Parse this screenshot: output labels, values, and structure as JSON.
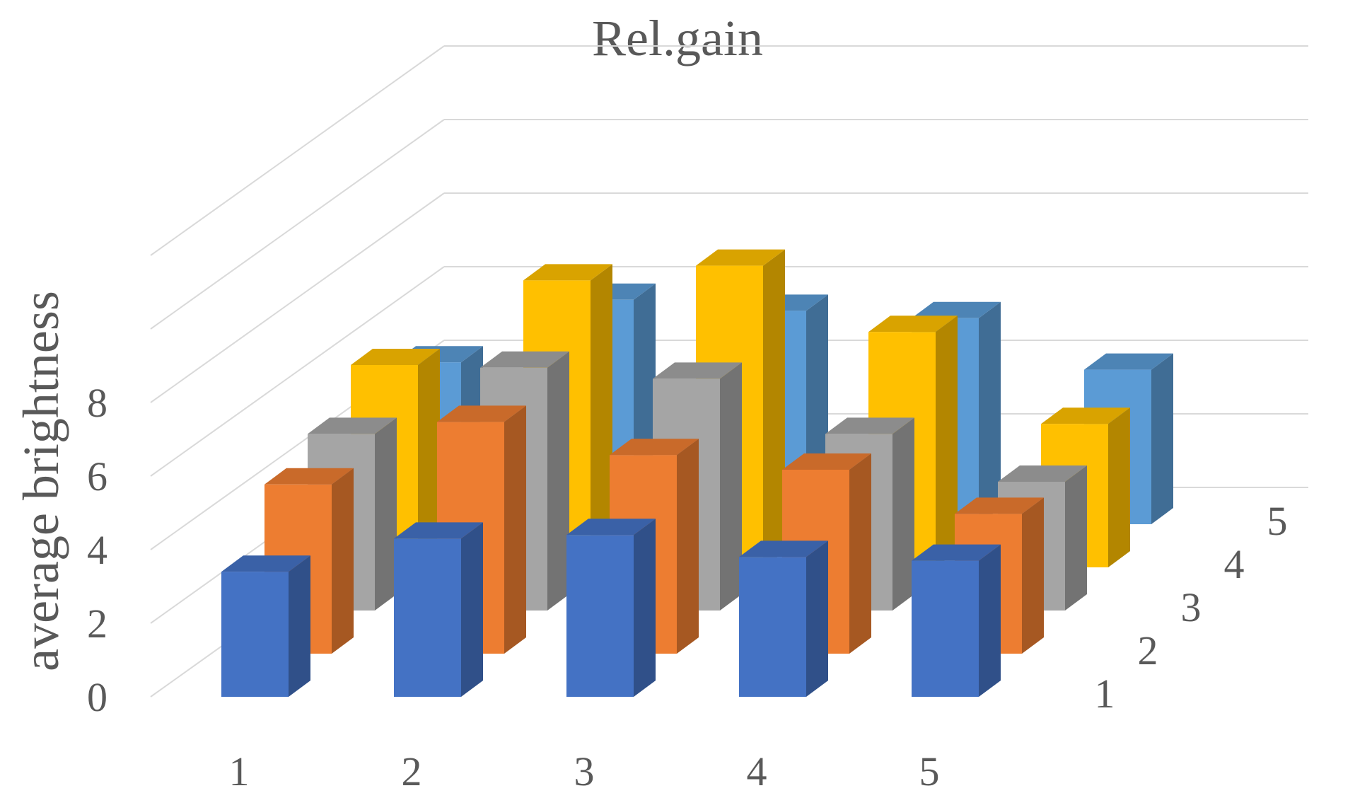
{
  "chart_data": {
    "type": "bar",
    "subtype": "3d-column",
    "title": "Rel.gain",
    "xlabel": "",
    "ylabel": "average brightness",
    "zlabel": "",
    "categories": [
      "1",
      "2",
      "3",
      "4",
      "5"
    ],
    "y_ticks": [
      "0",
      "2",
      "4",
      "6",
      "8"
    ],
    "ylim": [
      0,
      12
    ],
    "grid": true,
    "legend": "none",
    "series": [
      {
        "name": "1",
        "color": "#4472C4",
        "values": [
          3.4,
          4.3,
          4.4,
          3.8,
          3.7
        ]
      },
      {
        "name": "2",
        "color": "#ED7D31",
        "values": [
          4.6,
          6.3,
          5.4,
          5.0,
          3.8
        ]
      },
      {
        "name": "3",
        "color": "#A5A5A5",
        "values": [
          4.8,
          6.6,
          6.3,
          4.8,
          3.5
        ]
      },
      {
        "name": "4",
        "color": "#FFC000",
        "values": [
          5.5,
          7.8,
          8.2,
          6.4,
          3.9
        ]
      },
      {
        "name": "5",
        "color": "#5B9BD5",
        "values": [
          4.4,
          6.1,
          5.8,
          5.6,
          4.2
        ]
      }
    ]
  }
}
